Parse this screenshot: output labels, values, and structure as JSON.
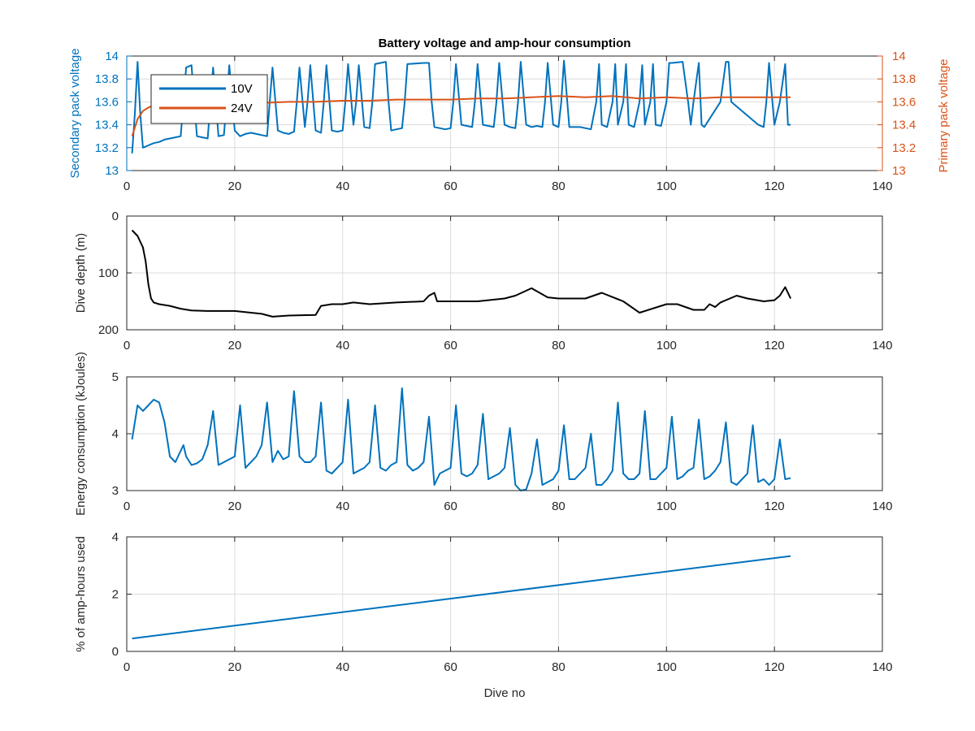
{
  "figure": {
    "title": "Battery voltage and amp-hour consumption",
    "colors": {
      "blue": "#0072BD",
      "orange": "#D95319",
      "black": "#000000",
      "grid": "#DCDCDC",
      "axis": "#262626"
    }
  },
  "chart_data": [
    {
      "type": "line",
      "title": "Battery voltage and amp-hour consumption",
      "xlabel": "",
      "xlim": [
        0,
        140
      ],
      "xticks": [
        0,
        20,
        40,
        60,
        80,
        100,
        120,
        140
      ],
      "ylabel_left": "Secondary pack voltage",
      "ylabel_right": "Primary pack voltage",
      "ylim_left": [
        13,
        14
      ],
      "ylim_right": [
        13,
        14
      ],
      "yticks_left": [
        13,
        13.2,
        13.4,
        13.6,
        13.8,
        14
      ],
      "yticks_right": [
        13,
        13.2,
        13.4,
        13.6,
        13.8,
        14
      ],
      "grid": true,
      "legend": {
        "placement": "top-left",
        "entries": [
          "10V",
          "24V"
        ]
      },
      "series": [
        {
          "name": "10V",
          "axis": "left",
          "color": "#0072BD",
          "x": [
            1,
            1.5,
            2,
            2.5,
            3,
            4,
            5,
            6,
            7,
            8,
            9,
            10,
            10.5,
            11,
            12,
            12.5,
            13,
            14,
            15,
            16,
            16.5,
            17,
            18,
            18.5,
            19,
            20,
            21,
            22,
            23,
            24,
            25,
            26,
            26.5,
            27,
            28,
            29,
            30,
            31,
            31.5,
            32,
            33,
            33.5,
            34,
            35,
            36,
            36.5,
            37,
            38,
            39,
            40,
            40.5,
            41,
            42,
            42.5,
            43,
            44,
            45,
            45.5,
            46,
            47,
            48,
            48.5,
            49,
            50,
            51,
            51.5,
            52,
            55,
            56,
            56.5,
            57,
            58,
            59,
            60,
            60.5,
            61,
            62,
            63,
            64,
            64.5,
            65,
            66,
            67,
            68,
            68.5,
            69,
            70,
            71,
            72,
            72.5,
            73,
            74,
            75,
            76,
            77,
            77.5,
            78,
            79,
            80,
            80.5,
            81,
            82,
            83,
            84,
            85,
            86,
            87,
            87.5,
            88,
            89,
            90,
            90.5,
            91,
            92,
            92.5,
            93,
            94,
            95,
            95.5,
            96,
            97,
            97.5,
            98,
            99,
            100,
            100.5,
            101,
            103,
            104,
            104.5,
            105,
            106,
            106.5,
            107,
            110,
            111,
            111.5,
            112,
            117,
            118,
            118.5,
            119,
            120,
            121,
            122,
            122.5,
            123
          ],
          "y": [
            13.15,
            13.5,
            13.95,
            13.5,
            13.2,
            13.22,
            13.24,
            13.25,
            13.27,
            13.28,
            13.29,
            13.3,
            13.6,
            13.9,
            13.92,
            13.6,
            13.3,
            13.29,
            13.28,
            13.9,
            13.6,
            13.3,
            13.31,
            13.6,
            13.92,
            13.35,
            13.3,
            13.32,
            13.33,
            13.32,
            13.31,
            13.3,
            13.6,
            13.9,
            13.35,
            13.33,
            13.32,
            13.34,
            13.6,
            13.9,
            13.38,
            13.6,
            13.92,
            13.35,
            13.33,
            13.6,
            13.92,
            13.35,
            13.34,
            13.35,
            13.6,
            13.93,
            13.4,
            13.6,
            13.92,
            13.38,
            13.37,
            13.6,
            13.93,
            13.94,
            13.95,
            13.6,
            13.35,
            13.36,
            13.37,
            13.6,
            13.93,
            13.94,
            13.94,
            13.6,
            13.38,
            13.37,
            13.36,
            13.37,
            13.6,
            13.93,
            13.4,
            13.39,
            13.38,
            13.6,
            13.93,
            13.4,
            13.39,
            13.38,
            13.6,
            13.94,
            13.4,
            13.38,
            13.37,
            13.6,
            13.95,
            13.4,
            13.38,
            13.39,
            13.38,
            13.6,
            13.94,
            13.4,
            13.38,
            13.6,
            13.96,
            13.38,
            13.38,
            13.38,
            13.37,
            13.36,
            13.6,
            13.93,
            13.4,
            13.38,
            13.6,
            13.93,
            13.4,
            13.6,
            13.93,
            13.4,
            13.38,
            13.6,
            13.92,
            13.4,
            13.6,
            13.93,
            13.4,
            13.39,
            13.6,
            13.94,
            13.94,
            13.95,
            13.6,
            13.4,
            13.6,
            13.94,
            13.4,
            13.38,
            13.6,
            13.95,
            13.95,
            13.6,
            13.4,
            13.38,
            13.6,
            13.94,
            13.4,
            13.6,
            13.93,
            13.4,
            13.4
          ]
        },
        {
          "name": "24V",
          "axis": "right",
          "color": "#D95319",
          "x": [
            1,
            2,
            3,
            4,
            5,
            6,
            8,
            10,
            15,
            20,
            25,
            30,
            35,
            40,
            45,
            50,
            55,
            60,
            65,
            70,
            75,
            80,
            85,
            90,
            95,
            100,
            105,
            110,
            115,
            120,
            123
          ],
          "y": [
            13.3,
            13.45,
            13.52,
            13.55,
            13.57,
            13.56,
            13.57,
            13.58,
            13.57,
            13.58,
            13.59,
            13.6,
            13.6,
            13.61,
            13.61,
            13.62,
            13.62,
            13.62,
            13.63,
            13.63,
            13.64,
            13.65,
            13.64,
            13.65,
            13.63,
            13.64,
            13.63,
            13.64,
            13.64,
            13.64,
            13.64
          ]
        }
      ]
    },
    {
      "type": "line",
      "title": "",
      "xlabel": "",
      "ylabel": "Dive depth (m)",
      "xlim": [
        0,
        140
      ],
      "ylim": [
        0,
        200
      ],
      "y_reversed": true,
      "xticks": [
        0,
        20,
        40,
        60,
        80,
        100,
        120,
        140
      ],
      "yticks": [
        0,
        100,
        200
      ],
      "grid": true,
      "series": [
        {
          "color": "#000000",
          "x": [
            1,
            2,
            3,
            3.5,
            4,
            4.5,
            5,
            6,
            8,
            10,
            12,
            15,
            20,
            25,
            27,
            30,
            35,
            36,
            38,
            40,
            42,
            45,
            50,
            55,
            56,
            57,
            57.5,
            58,
            60,
            65,
            70,
            72,
            75,
            78,
            80,
            85,
            88,
            92,
            95,
            100,
            102,
            105,
            107,
            108,
            109,
            110,
            113,
            115,
            118,
            120,
            121,
            122,
            123
          ],
          "y": [
            25,
            35,
            55,
            80,
            120,
            145,
            152,
            155,
            158,
            163,
            166,
            167,
            167,
            172,
            177,
            175,
            174,
            158,
            155,
            155,
            152,
            155,
            152,
            150,
            140,
            135,
            150,
            150,
            150,
            150,
            145,
            140,
            127,
            143,
            145,
            145,
            135,
            150,
            170,
            155,
            155,
            165,
            165,
            155,
            160,
            152,
            140,
            145,
            150,
            148,
            140,
            125,
            145
          ]
        }
      ]
    },
    {
      "type": "line",
      "title": "",
      "xlabel": "",
      "ylabel": "Energy consumption (kJoules)",
      "xlim": [
        0,
        140
      ],
      "ylim": [
        3,
        5
      ],
      "xticks": [
        0,
        20,
        40,
        60,
        80,
        100,
        120,
        140
      ],
      "yticks": [
        3,
        4,
        5
      ],
      "grid": true,
      "series": [
        {
          "color": "#0072BD",
          "x": [
            1,
            2,
            3,
            4,
            5,
            6,
            7,
            8,
            9,
            10,
            10.5,
            11,
            12,
            13,
            14,
            15,
            16,
            17,
            18,
            19,
            20,
            21,
            22,
            23,
            24,
            25,
            26,
            27,
            28,
            29,
            30,
            31,
            32,
            33,
            34,
            35,
            36,
            37,
            38,
            39,
            40,
            41,
            42,
            43,
            44,
            45,
            46,
            47,
            48,
            49,
            50,
            51,
            52,
            53,
            54,
            55,
            56,
            57,
            58,
            59,
            60,
            61,
            62,
            63,
            64,
            65,
            66,
            67,
            68,
            69,
            70,
            71,
            72,
            73,
            74,
            75,
            76,
            77,
            78,
            79,
            80,
            81,
            82,
            83,
            84,
            85,
            86,
            87,
            88,
            89,
            90,
            91,
            92,
            93,
            94,
            95,
            96,
            97,
            98,
            99,
            100,
            101,
            102,
            103,
            104,
            105,
            106,
            107,
            108,
            109,
            110,
            111,
            112,
            113,
            114,
            115,
            116,
            117,
            118,
            119,
            120,
            121,
            122,
            123
          ],
          "y": [
            3.9,
            4.5,
            4.4,
            4.5,
            4.6,
            4.55,
            4.2,
            3.6,
            3.5,
            3.7,
            3.8,
            3.6,
            3.45,
            3.48,
            3.55,
            3.8,
            4.4,
            3.45,
            3.5,
            3.55,
            3.6,
            4.5,
            3.4,
            3.5,
            3.6,
            3.8,
            4.55,
            3.5,
            3.7,
            3.55,
            3.6,
            4.75,
            3.6,
            3.5,
            3.5,
            3.6,
            4.55,
            3.35,
            3.3,
            3.4,
            3.5,
            4.6,
            3.3,
            3.35,
            3.4,
            3.5,
            4.5,
            3.4,
            3.35,
            3.45,
            3.5,
            4.8,
            3.45,
            3.35,
            3.4,
            3.5,
            4.3,
            3.1,
            3.3,
            3.35,
            3.4,
            4.5,
            3.3,
            3.25,
            3.3,
            3.45,
            4.35,
            3.2,
            3.25,
            3.3,
            3.4,
            4.1,
            3.1,
            3.0,
            3.02,
            3.3,
            3.9,
            3.1,
            3.15,
            3.2,
            3.35,
            4.15,
            3.2,
            3.2,
            3.3,
            3.4,
            4.0,
            3.1,
            3.1,
            3.2,
            3.35,
            4.55,
            3.3,
            3.2,
            3.2,
            3.3,
            4.4,
            3.2,
            3.2,
            3.3,
            3.4,
            4.3,
            3.2,
            3.25,
            3.35,
            3.4,
            4.25,
            3.2,
            3.25,
            3.35,
            3.5,
            4.2,
            3.15,
            3.1,
            3.2,
            3.3,
            4.15,
            3.15,
            3.2,
            3.1,
            3.2,
            3.9,
            3.2,
            3.22
          ]
        }
      ]
    },
    {
      "type": "line",
      "title": "",
      "xlabel": "Dive no",
      "ylabel": "% of amp-hours used",
      "xlim": [
        0,
        140
      ],
      "ylim": [
        0,
        4
      ],
      "xticks": [
        0,
        20,
        40,
        60,
        80,
        100,
        120,
        140
      ],
      "yticks": [
        0,
        2,
        4
      ],
      "grid": true,
      "series": [
        {
          "color": "#0072BD",
          "x": [
            1,
            123
          ],
          "y": [
            0.45,
            3.33
          ]
        }
      ]
    }
  ]
}
